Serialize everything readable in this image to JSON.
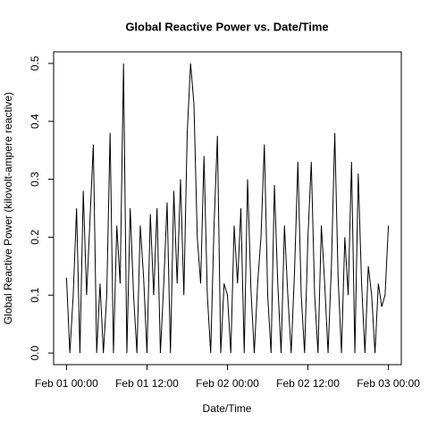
{
  "chart_data": {
    "type": "line",
    "title": "Global Reactive Power vs. Date/Time",
    "x_label": "Date/Time",
    "y_label": "Global Reactive Power (kilovolt-ampere reactive)",
    "x": [
      0,
      0.5,
      1,
      1.5,
      2,
      2.5,
      3,
      3.5,
      4,
      4.5,
      5,
      5.5,
      6,
      6.5,
      7,
      7.5,
      8,
      8.5,
      9,
      9.5,
      10,
      10.5,
      11,
      11.5,
      12,
      12.5,
      13,
      13.5,
      14,
      14.5,
      15,
      15.5,
      16,
      16.5,
      17,
      17.5,
      18,
      18.5,
      19,
      19.5,
      20,
      20.5,
      21,
      21.5,
      22,
      22.5,
      23,
      23.5,
      24,
      24.5,
      25,
      25.5,
      26,
      26.5,
      27,
      27.5,
      28,
      28.5,
      29,
      29.5,
      30,
      30.5,
      31,
      31.5,
      32,
      32.5,
      33,
      33.5,
      34,
      34.5,
      35,
      35.5,
      36,
      36.5,
      37,
      37.5,
      38,
      38.5,
      39,
      39.5,
      40,
      40.5,
      41,
      41.5,
      42,
      42.5,
      43,
      43.5,
      44,
      44.5,
      45,
      45.5,
      46,
      46.5,
      47,
      47.5,
      48
    ],
    "series": [
      {
        "name": "Global_reactive_power",
        "color": "#000000",
        "values": [
          0.13,
          0,
          0.1,
          0.25,
          0,
          0.28,
          0.1,
          0.23,
          0.36,
          0,
          0.12,
          0,
          0.1,
          0.38,
          0,
          0.22,
          0.12,
          0.5,
          0,
          0.25,
          0.1,
          0,
          0.22,
          0.13,
          0,
          0.24,
          0.1,
          0.25,
          0,
          0.12,
          0.26,
          0,
          0.28,
          0.12,
          0.3,
          0.1,
          0.38,
          0.5,
          0.43,
          0.2,
          0.12,
          0.34,
          0.1,
          0,
          0.22,
          0.375,
          0,
          0.12,
          0.1,
          0,
          0.22,
          0.12,
          0.25,
          0,
          0.3,
          0.11,
          0,
          0.12,
          0.2,
          0.36,
          0.1,
          0,
          0.29,
          0.12,
          0,
          0.22,
          0.1,
          0,
          0.14,
          0.33,
          0.1,
          0,
          0.2,
          0.33,
          0.1,
          0,
          0.22,
          0.12,
          0,
          0.15,
          0.38,
          0.13,
          0,
          0.2,
          0.1,
          0.33,
          0,
          0.31,
          0.12,
          0,
          0.15,
          0.1,
          0,
          0.12,
          0.08,
          0.1,
          0.22
        ]
      }
    ],
    "xlim": [
      -1.92,
      49.92
    ],
    "xticks": [
      {
        "value": 0,
        "label": "Feb 01 00:00"
      },
      {
        "value": 12,
        "label": "Feb 01 12:00"
      },
      {
        "value": 24,
        "label": "Feb 02 00:00"
      },
      {
        "value": 36,
        "label": "Feb 02 12:00"
      },
      {
        "value": 48,
        "label": "Feb 03 00:00"
      }
    ],
    "ylim": [
      -0.02,
      0.52
    ],
    "yticks": [
      {
        "value": 0,
        "label": "0.0"
      },
      0.1,
      0.2,
      0.3,
      0.4,
      0.5
    ]
  }
}
